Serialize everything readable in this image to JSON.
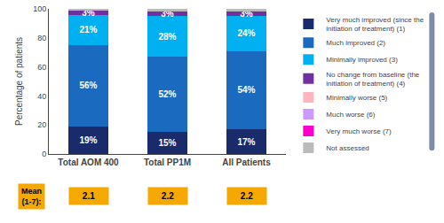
{
  "chart_data": {
    "type": "bar",
    "stacked": true,
    "categories": [
      "Total AOM 400",
      "Total PP1M",
      "All Patients"
    ],
    "series": [
      {
        "name": "Very much improved (since the initiation of treatment) (1)",
        "color": "#1a2b6b",
        "values": [
          19,
          15,
          17
        ],
        "value_labels": [
          "19%",
          "15%",
          "17%"
        ]
      },
      {
        "name": "Much improved (2)",
        "color": "#1a6bbf",
        "values": [
          56,
          52,
          54
        ],
        "value_labels": [
          "56%",
          "52%",
          "54%"
        ]
      },
      {
        "name": "Minimally improved (3)",
        "color": "#00b0f0",
        "values": [
          21,
          28,
          24
        ],
        "value_labels": [
          "21%",
          "28%",
          "24%"
        ]
      },
      {
        "name": "No change from baseline (the initiation of treatment) (4)",
        "color": "#7030a0",
        "values": [
          3,
          3,
          3
        ],
        "value_labels": [
          "3%",
          "3%",
          "3%"
        ]
      },
      {
        "name": "Minimally worse (5)",
        "color": "#ffb6c1",
        "values": [
          0,
          0,
          0
        ]
      },
      {
        "name": "Much worse (6)",
        "color": "#cc99ff",
        "values": [
          0,
          0,
          0
        ]
      },
      {
        "name": "Very much worse (7)",
        "color": "#ff00cc",
        "values": [
          0,
          0,
          0
        ]
      },
      {
        "name": "Not assessed",
        "color": "#bbbbbb",
        "values": [
          1,
          2,
          2
        ]
      }
    ],
    "ylabel": "Percentage of patients",
    "ylim": [
      0,
      100
    ],
    "yticks": [
      0,
      20,
      40,
      60,
      80,
      100
    ],
    "grid": false,
    "legend": "right",
    "means": {
      "label": "Mean\n(1-7):",
      "color": "#f5a800",
      "values": [
        2.1,
        2.2,
        2.2
      ]
    }
  }
}
